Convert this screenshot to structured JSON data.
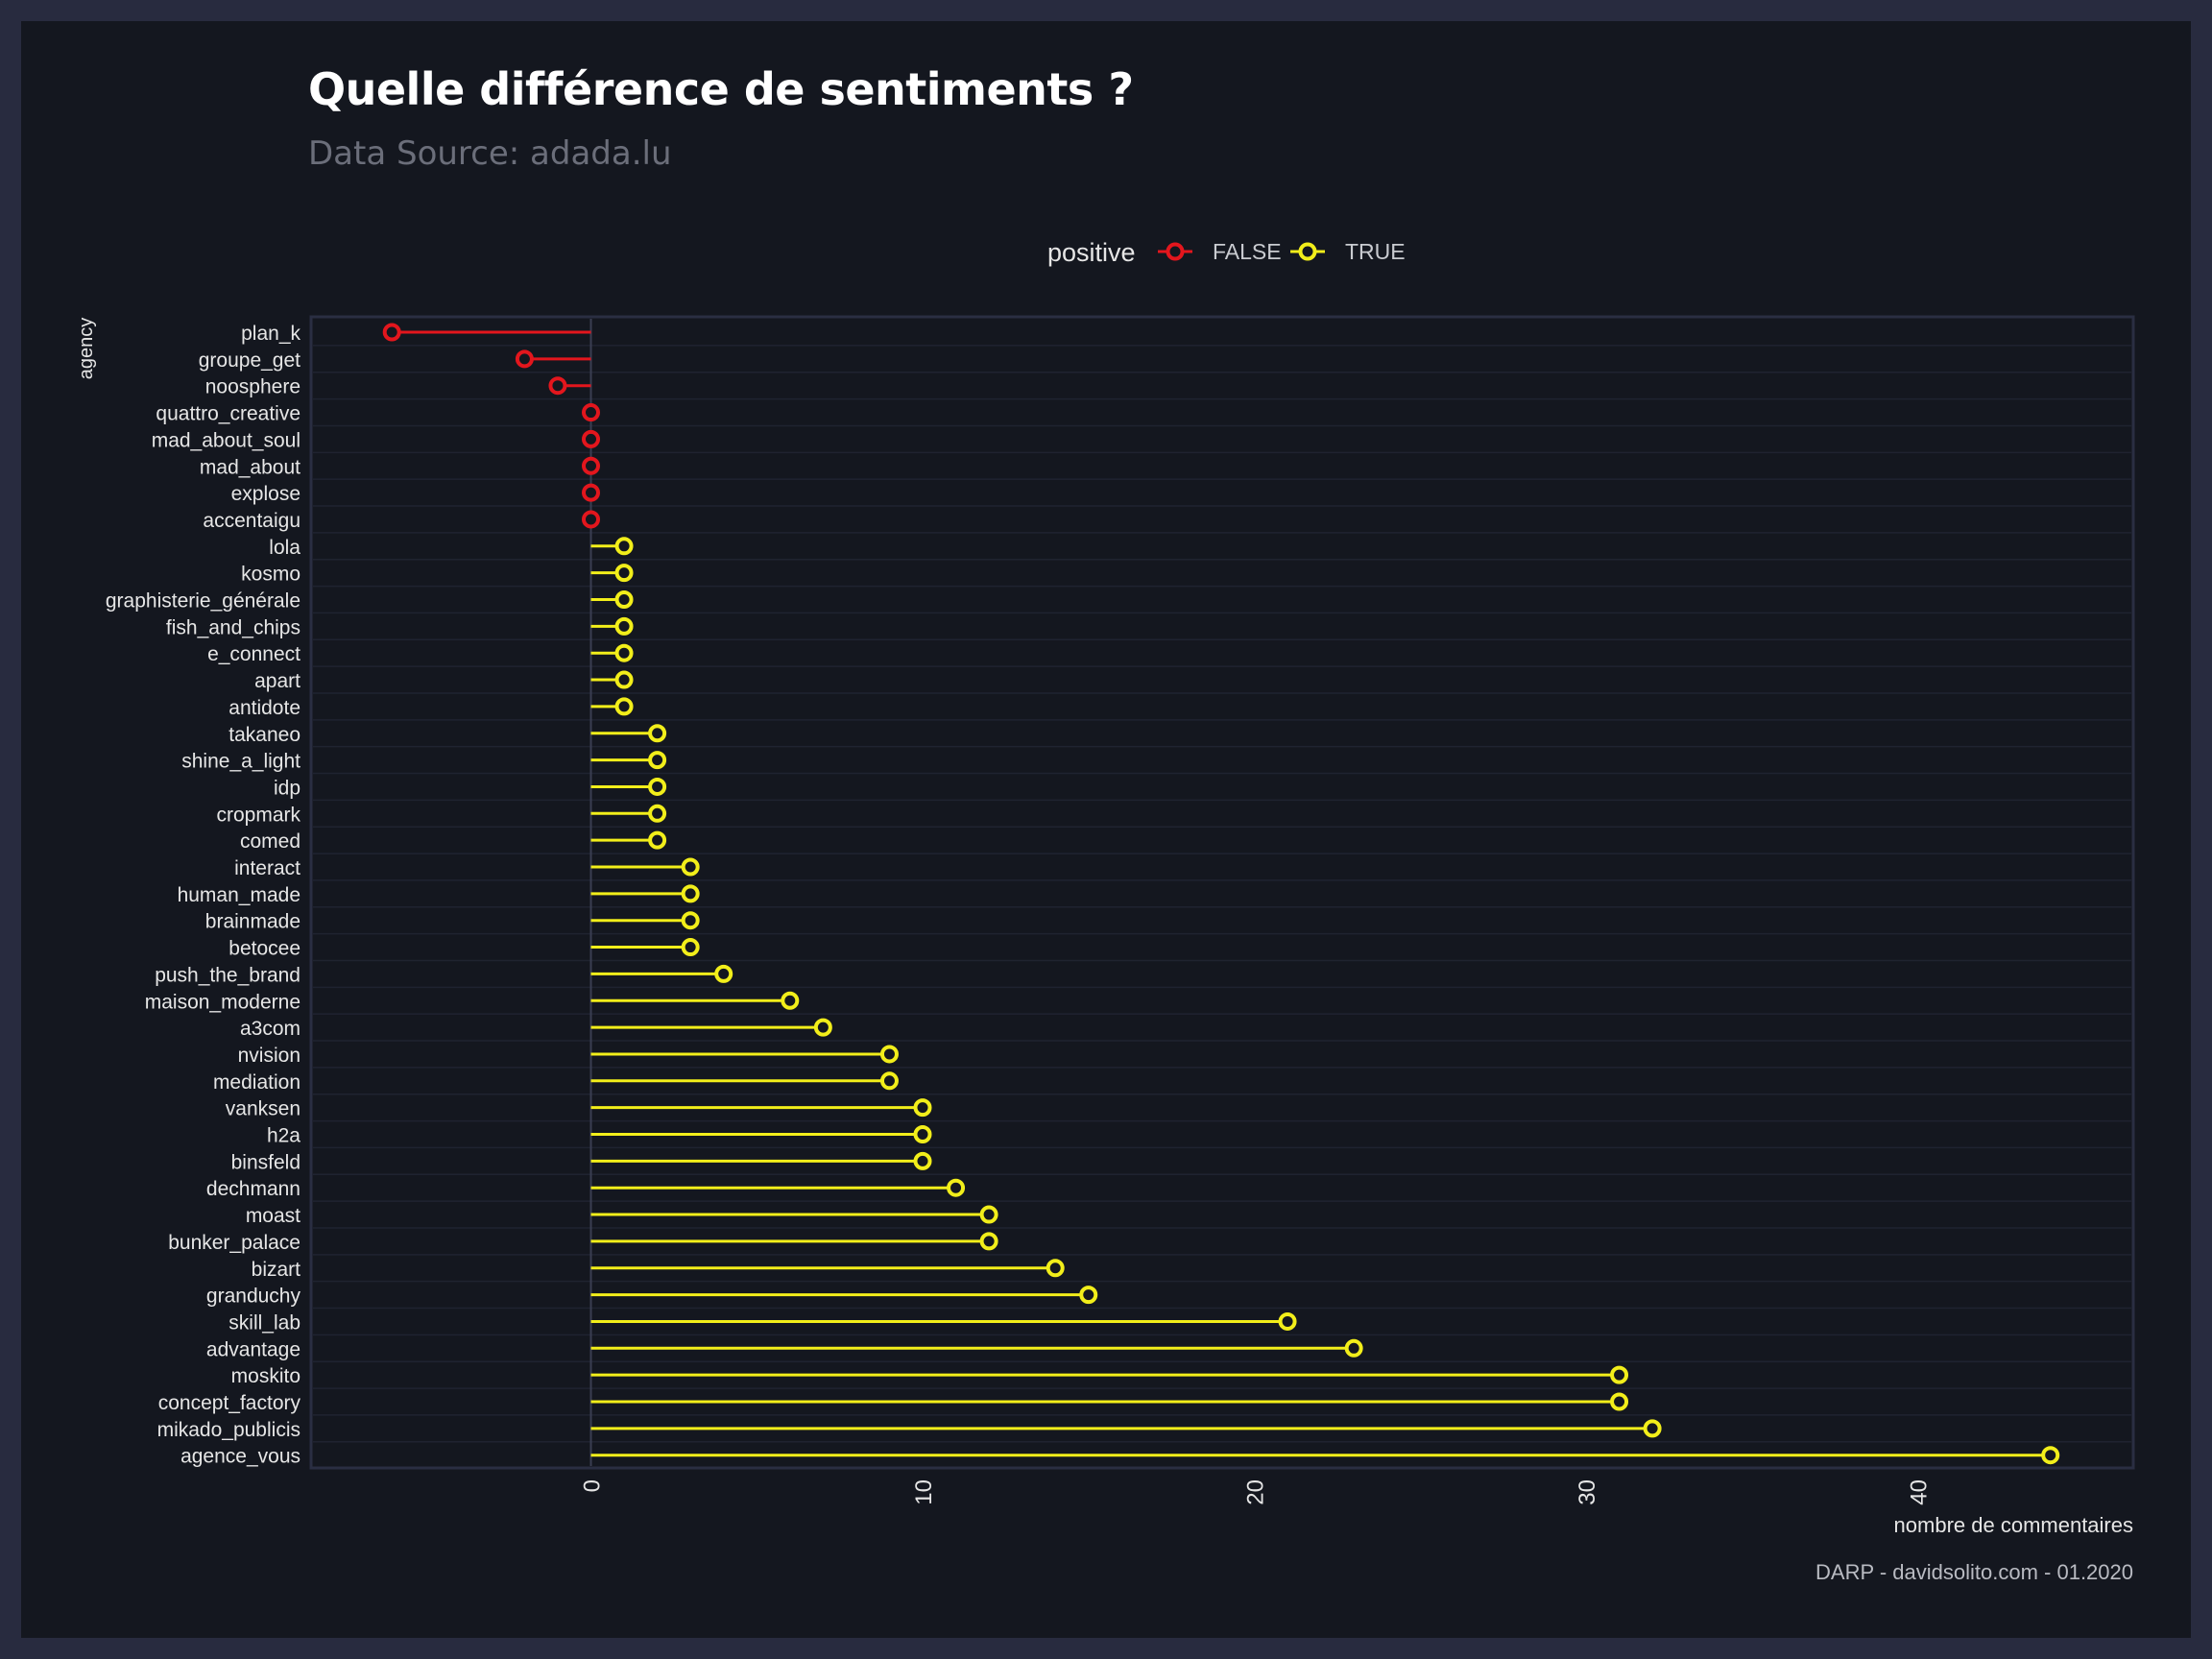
{
  "colors": {
    "page_border": "#282b3f",
    "background": "#14171f",
    "panel_border": "#2a2e42",
    "grid": "#1f2330",
    "zero_line": "#3a3e52",
    "text": "#e6e6e6",
    "subtitle": "#6b6e7a",
    "false_color": "#e3161d",
    "true_color": "#f2ee1a"
  },
  "chart_data": {
    "type": "lollipop",
    "title": "Quelle différence de sentiments ?",
    "subtitle": "Data Source: adada.lu",
    "xlabel": "nombre de commentaires",
    "ylabel": "agency",
    "caption": "DARP - davidsolito.com - 01.2020",
    "legend": {
      "title": "positive",
      "position": "top",
      "entries": [
        {
          "label": "FALSE",
          "color": "#e3161d"
        },
        {
          "label": "TRUE",
          "color": "#f2ee1a"
        }
      ]
    },
    "xlim": [
      -8.5,
      46
    ],
    "xticks": [
      0,
      10,
      20,
      30,
      40
    ],
    "grid": true,
    "points": [
      {
        "category": "plan_k",
        "value": -6,
        "positive": false
      },
      {
        "category": "groupe_get",
        "value": -2,
        "positive": false
      },
      {
        "category": "noosphere",
        "value": -1,
        "positive": false
      },
      {
        "category": "quattro_creative",
        "value": 0,
        "positive": false
      },
      {
        "category": "mad_about_soul",
        "value": 0,
        "positive": false
      },
      {
        "category": "mad_about",
        "value": 0,
        "positive": false
      },
      {
        "category": "explose",
        "value": 0,
        "positive": false
      },
      {
        "category": "accentaigu",
        "value": 0,
        "positive": false
      },
      {
        "category": "lola",
        "value": 1,
        "positive": true
      },
      {
        "category": "kosmo",
        "value": 1,
        "positive": true
      },
      {
        "category": "graphisterie_générale",
        "value": 1,
        "positive": true
      },
      {
        "category": "fish_and_chips",
        "value": 1,
        "positive": true
      },
      {
        "category": "e_connect",
        "value": 1,
        "positive": true
      },
      {
        "category": "apart",
        "value": 1,
        "positive": true
      },
      {
        "category": "antidote",
        "value": 1,
        "positive": true
      },
      {
        "category": "takaneo",
        "value": 2,
        "positive": true
      },
      {
        "category": "shine_a_light",
        "value": 2,
        "positive": true
      },
      {
        "category": "idp",
        "value": 2,
        "positive": true
      },
      {
        "category": "cropmark",
        "value": 2,
        "positive": true
      },
      {
        "category": "comed",
        "value": 2,
        "positive": true
      },
      {
        "category": "interact",
        "value": 3,
        "positive": true
      },
      {
        "category": "human_made",
        "value": 3,
        "positive": true
      },
      {
        "category": "brainmade",
        "value": 3,
        "positive": true
      },
      {
        "category": "betocee",
        "value": 3,
        "positive": true
      },
      {
        "category": "push_the_brand",
        "value": 4,
        "positive": true
      },
      {
        "category": "maison_moderne",
        "value": 6,
        "positive": true
      },
      {
        "category": "a3com",
        "value": 7,
        "positive": true
      },
      {
        "category": "nvision",
        "value": 9,
        "positive": true
      },
      {
        "category": "mediation",
        "value": 9,
        "positive": true
      },
      {
        "category": "vanksen",
        "value": 10,
        "positive": true
      },
      {
        "category": "h2a",
        "value": 10,
        "positive": true
      },
      {
        "category": "binsfeld",
        "value": 10,
        "positive": true
      },
      {
        "category": "dechmann",
        "value": 11,
        "positive": true
      },
      {
        "category": "moast",
        "value": 12,
        "positive": true
      },
      {
        "category": "bunker_palace",
        "value": 12,
        "positive": true
      },
      {
        "category": "bizart",
        "value": 14,
        "positive": true
      },
      {
        "category": "granduchy",
        "value": 15,
        "positive": true
      },
      {
        "category": "skill_lab",
        "value": 21,
        "positive": true
      },
      {
        "category": "advantage",
        "value": 23,
        "positive": true
      },
      {
        "category": "moskito",
        "value": 31,
        "positive": true
      },
      {
        "category": "concept_factory",
        "value": 31,
        "positive": true
      },
      {
        "category": "mikado_publicis",
        "value": 32,
        "positive": true
      },
      {
        "category": "agence_vous",
        "value": 44,
        "positive": true
      }
    ]
  }
}
